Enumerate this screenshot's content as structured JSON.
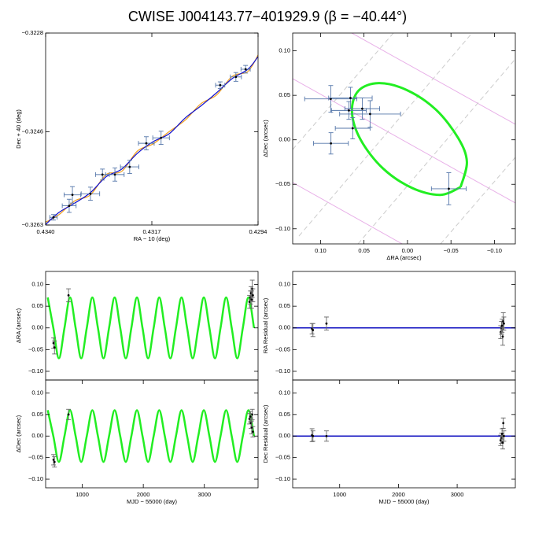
{
  "title": "CWISE J004143.77−401929.9   (β = −40.44°)",
  "chart_data": [
    {
      "type": "scatter",
      "xlabel": "RA − 10 (deg)",
      "ylabel": "Dec + 40 (deg)",
      "xlim": [
        0.434,
        0.4294
      ],
      "ylim": [
        -0.3263,
        -0.3228
      ],
      "xticks": [
        {
          "value": 0.434,
          "label": "0.4340"
        },
        {
          "value": 0.4317,
          "label": "0.4317"
        },
        {
          "value": 0.4294,
          "label": "0.4294"
        }
      ],
      "yticks": [
        {
          "value": -0.3263,
          "label": "−0.3263"
        },
        {
          "value": -0.3246,
          "label": "−0.3246"
        },
        {
          "value": -0.3228,
          "label": "−0.3228"
        }
      ],
      "series": [
        {
          "style": "line",
          "smooth": true,
          "color": "#f0a020",
          "x": [
            0.434,
            0.43371,
            0.43337,
            0.43303,
            0.43269,
            0.43235,
            0.43201,
            0.43167,
            0.43133,
            0.43098,
            0.43064,
            0.4303,
            0.42996,
            0.42962,
            0.4294
          ],
          "values": [
            -0.32625,
            -0.32611,
            -0.32586,
            -0.32575,
            -0.32538,
            -0.32532,
            -0.32495,
            -0.32482,
            -0.3246,
            -0.32439,
            -0.32409,
            -0.32393,
            -0.32359,
            -0.3235,
            -0.3232
          ]
        },
        {
          "style": "line",
          "smooth": true,
          "color": "#1010d0",
          "x": [
            0.434,
            0.43371,
            0.43337,
            0.43303,
            0.43269,
            0.43235,
            0.43201,
            0.43167,
            0.43133,
            0.43098,
            0.43064,
            0.4303,
            0.42996,
            0.42962,
            0.4294
          ],
          "values": [
            -0.32629,
            -0.32607,
            -0.3259,
            -0.32571,
            -0.32542,
            -0.32528,
            -0.32499,
            -0.32478,
            -0.32464,
            -0.32435,
            -0.32413,
            -0.32389,
            -0.32363,
            -0.32346,
            -0.32323
          ]
        },
        {
          "style": "points",
          "color": "#000000",
          "errcolor": "#5577aa",
          "x": [
            0.43383,
            0.43349,
            0.43342,
            0.43303,
            0.43277,
            0.4325,
            0.43218,
            0.43182,
            0.4315,
            0.43022,
            0.42988,
            0.42967
          ],
          "values": [
            -0.32616,
            -0.32595,
            -0.32575,
            -0.32573,
            -0.32538,
            -0.32538,
            -0.32524,
            -0.32481,
            -0.32471,
            -0.32375,
            -0.3236,
            -0.32346
          ],
          "xerr": [
            8e-05,
            0.00015,
            0.00018,
            0.0002,
            0.00015,
            0.0002,
            0.0002,
            0.00017,
            0.00018,
            0.0001,
            0.00012,
            0.0001
          ],
          "yerr": [
            5e-05,
            0.00012,
            0.00015,
            0.00012,
            0.0001,
            0.00012,
            0.00012,
            0.00012,
            0.00012,
            6e-05,
            8e-05,
            7e-05
          ]
        }
      ]
    },
    {
      "type": "scatter",
      "xlabel": "ΔRA (arcsec)",
      "ylabel": "ΔDec (arcsec)",
      "xlim": [
        0.132,
        -0.124
      ],
      "ylim": [
        -0.117,
        0.12
      ],
      "xticks": [
        {
          "value": 0.1,
          "label": "0.10"
        },
        {
          "value": 0.05,
          "label": "0.05"
        },
        {
          "value": 0,
          "label": "0.00"
        },
        {
          "value": -0.05,
          "label": "−0.05"
        },
        {
          "value": -0.1,
          "label": "−0.10"
        }
      ],
      "yticks": [
        {
          "value": -0.1,
          "label": "−0.10"
        },
        {
          "value": -0.05,
          "label": "−0.05"
        },
        {
          "value": 0,
          "label": "0.00"
        },
        {
          "value": 0.05,
          "label": "0.05"
        },
        {
          "value": 0.1,
          "label": "0.10"
        }
      ],
      "series": [
        {
          "style": "line",
          "smooth": true,
          "width": 3,
          "color": "#22ee22",
          "x": [
            -0.0611,
            -0.0376,
            -0.005,
            0.0285,
            0.0538,
            0.0638,
            0.0566,
            0.033,
            0.0005,
            -0.033,
            -0.0584,
            -0.0683,
            -0.0611
          ],
          "values": [
            -0.0531,
            -0.0619,
            -0.054,
            -0.0319,
            0.0,
            0.031,
            0.0549,
            0.0637,
            0.0558,
            0.0336,
            0.0018,
            -0.0248,
            -0.0531
          ]
        },
        {
          "style": "points",
          "color": "#000000",
          "errcolor": "#5577aa",
          "x": [
            0.0882,
            0.0656,
            0.052,
            0.0674,
            0.043,
            0.063,
            0.088,
            -0.0475
          ],
          "values": [
            0.046,
            0.047,
            0.035,
            0.033,
            0.029,
            0.013,
            -0.004,
            -0.055
          ],
          "xerr": [
            0.03,
            0.025,
            0.02,
            0.02,
            0.035,
            0.02,
            0.02,
            0.02
          ],
          "yerr": [
            0.015,
            0.012,
            0.012,
            0.01,
            0.015,
            0.012,
            0.012,
            0.018
          ]
        }
      ]
    },
    {
      "type": "scatter",
      "ylabel": "ΔRA (arcsec)",
      "xlim": [
        400,
        3880
      ],
      "ylim": [
        -0.12,
        0.13
      ],
      "yticks": [
        {
          "value": -0.1,
          "label": "−0.10"
        },
        {
          "value": -0.05,
          "label": "−0.05"
        },
        {
          "value": 0,
          "label": "0.00"
        },
        {
          "value": 0.05,
          "label": "0.05"
        },
        {
          "value": 0.1,
          "label": "0.10"
        }
      ],
      "series": [
        {
          "style": "line",
          "smooth": true,
          "width": 2.5,
          "color": "#22ee22",
          "x": [
            434.8,
            526.1,
            617.4,
            708.7,
            800.0,
            891.4,
            982.7,
            1074.0,
            1165.3,
            1256.6,
            1347.9,
            1439.2,
            1530.5,
            1621.8,
            1713.2,
            1804.5,
            1895.8,
            1987.1,
            2078.4,
            2169.7,
            2261.0,
            2352.3,
            2443.6,
            2535.0,
            2626.3,
            2717.6,
            2808.9,
            2900.2,
            2991.5,
            3082.8,
            3174.1,
            3265.4,
            3356.8,
            3448.1,
            3539.4,
            3630.7,
            3722.0,
            3813.3
          ],
          "values": [
            0.07,
            0,
            -0.07,
            0,
            0.07,
            0,
            -0.07,
            0,
            0.07,
            0,
            -0.07,
            0,
            0.07,
            0,
            -0.07,
            0,
            0.07,
            0,
            -0.07,
            0,
            0.07,
            0,
            -0.07,
            0,
            0.07,
            0,
            -0.07,
            0,
            0.07,
            0,
            -0.07,
            0,
            0.07,
            0,
            -0.07,
            0,
            0.07,
            0
          ]
        },
        {
          "style": "points",
          "color": "#000000",
          "errcolor": "#666666",
          "x": [
            530,
            545,
            775,
            3740,
            3755,
            3765,
            3775,
            3785,
            3795
          ],
          "values": [
            -0.035,
            -0.045,
            0.075,
            0.06,
            0.07,
            0.08,
            0.065,
            0.09,
            0.075
          ],
          "yerr": [
            0.012,
            0.015,
            0.015,
            0.015,
            0.015,
            0.015,
            0.02,
            0.02,
            0.015
          ]
        }
      ]
    },
    {
      "type": "scatter",
      "xlabel": "MJD − 55000 (day)",
      "ylabel": "ΔDec (arcsec)",
      "xlim": [
        400,
        3880
      ],
      "ylim": [
        -0.12,
        0.13
      ],
      "xticks": [
        1000,
        2000,
        3000
      ],
      "yticks": [
        {
          "value": -0.1,
          "label": "−0.10"
        },
        {
          "value": -0.05,
          "label": "−0.05"
        },
        {
          "value": 0,
          "label": "0.00"
        },
        {
          "value": 0.05,
          "label": "0.05"
        },
        {
          "value": 0.1,
          "label": "0.10"
        }
      ],
      "series": [
        {
          "style": "line",
          "smooth": true,
          "width": 2.5,
          "color": "#22ee22",
          "x": [
            434.8,
            526.1,
            617.4,
            708.7,
            800.0,
            891.4,
            982.7,
            1074.0,
            1165.3,
            1256.6,
            1347.9,
            1439.2,
            1530.5,
            1621.8,
            1713.2,
            1804.5,
            1895.8,
            1987.1,
            2078.4,
            2169.7,
            2261.0,
            2352.3,
            2443.6,
            2535.0,
            2626.3,
            2717.6,
            2808.9,
            2900.2,
            2991.5,
            3082.8,
            3174.1,
            3265.4,
            3356.8,
            3448.1,
            3539.4,
            3630.7,
            3722.0,
            3813.3
          ],
          "values": [
            0.06,
            0,
            -0.06,
            0,
            0.06,
            0,
            -0.06,
            0,
            0.06,
            0,
            -0.06,
            0,
            0.06,
            0,
            -0.06,
            0,
            0.06,
            0,
            -0.06,
            0,
            0.06,
            0,
            -0.06,
            0,
            0.06,
            0,
            -0.06,
            0,
            0.06,
            0,
            -0.06,
            0,
            0.06,
            0,
            -0.06,
            0,
            0.06,
            0
          ]
        },
        {
          "style": "points",
          "color": "#000000",
          "errcolor": "#666666",
          "x": [
            530,
            545,
            775,
            3740,
            3755,
            3765,
            3775,
            3785,
            3795
          ],
          "values": [
            -0.055,
            -0.06,
            0.05,
            0.04,
            0.045,
            0.03,
            0.02,
            0.05,
            0.01
          ],
          "yerr": [
            0.012,
            0.012,
            0.012,
            0.012,
            0.012,
            0.012,
            0.015,
            0.012,
            0.012
          ]
        }
      ]
    },
    {
      "type": "scatter",
      "ylabel": "RA Residual (arcsec)",
      "xlim": [
        200,
        3990
      ],
      "ylim": [
        -0.12,
        0.13
      ],
      "yticks": [
        {
          "value": -0.1,
          "label": "−0.10"
        },
        {
          "value": -0.05,
          "label": "−0.05"
        },
        {
          "value": 0,
          "label": "0.00"
        },
        {
          "value": 0.05,
          "label": "0.05"
        },
        {
          "value": 0.1,
          "label": "0.10"
        }
      ],
      "hline": 0,
      "hline_color": "#1010c0",
      "series": [
        {
          "style": "points",
          "color": "#000000",
          "errcolor": "#666666",
          "x": [
            530,
            545,
            775,
            3740,
            3755,
            3765,
            3775,
            3785,
            3795
          ],
          "values": [
            -0.002,
            -0.005,
            0.01,
            -0.01,
            0.0,
            0.005,
            -0.02,
            0.015,
            0.01
          ],
          "yerr": [
            0.012,
            0.015,
            0.015,
            0.015,
            0.015,
            0.015,
            0.02,
            0.02,
            0.015
          ]
        }
      ]
    },
    {
      "type": "scatter",
      "xlabel": "MJD − 55000 (day)",
      "ylabel": "Dec Residual (arcsec)",
      "xlim": [
        200,
        3990
      ],
      "ylim": [
        -0.12,
        0.13
      ],
      "xticks": [
        1000,
        2000,
        3000
      ],
      "yticks": [
        {
          "value": -0.1,
          "label": "−0.10"
        },
        {
          "value": -0.05,
          "label": "−0.05"
        },
        {
          "value": 0,
          "label": "0.00"
        },
        {
          "value": 0.05,
          "label": "0.05"
        },
        {
          "value": 0.1,
          "label": "0.10"
        }
      ],
      "hline": 0,
      "hline_color": "#1010c0",
      "series": [
        {
          "style": "points",
          "color": "#000000",
          "errcolor": "#666666",
          "x": [
            530,
            545,
            775,
            3740,
            3755,
            3765,
            3775,
            3785,
            3795
          ],
          "values": [
            0.002,
            0.0,
            0.0,
            -0.01,
            -0.005,
            0.005,
            -0.015,
            0.03,
            0.0
          ],
          "yerr": [
            0.015,
            0.012,
            0.012,
            0.012,
            0.012,
            0.012,
            0.015,
            0.012,
            0.012
          ]
        }
      ]
    }
  ]
}
